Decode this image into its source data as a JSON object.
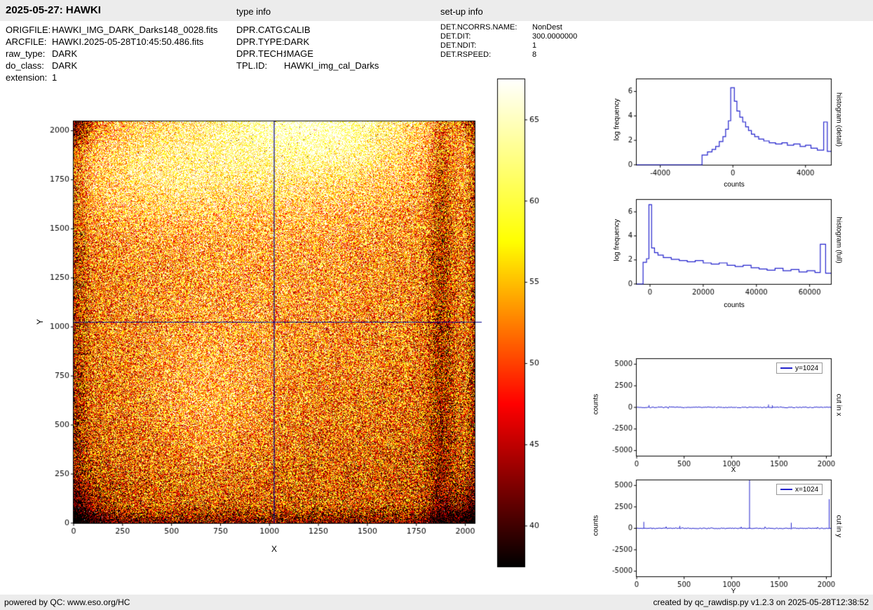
{
  "colors": {
    "line_blue": "#2222cc",
    "crosshair_blue": "#00008b",
    "bar_bg": "#ececec"
  },
  "header": {
    "title": "2025-05-27: HAWKI",
    "type_info": "type info",
    "setup_info": "set-up info"
  },
  "metadata": {
    "files": [
      {
        "label": "ORIGFILE:",
        "value": "HAWKI_IMG_DARK_Darks148_0028.fits"
      },
      {
        "label": "ARCFILE:",
        "value": "HAWKI.2025-05-28T10:45:50.486.fits"
      },
      {
        "label": "raw_type:",
        "value": "DARK"
      },
      {
        "label": "do_class:",
        "value": "DARK"
      },
      {
        "label": "extension:",
        "value": "1"
      }
    ],
    "type_info": [
      {
        "label": "DPR.CATG:",
        "value": "CALIB"
      },
      {
        "label": "DPR.TYPE:",
        "value": "DARK"
      },
      {
        "label": "DPR.TECH:",
        "value": "IMAGE"
      },
      {
        "label": "TPL.ID:",
        "value": "HAWKI_img_cal_Darks"
      }
    ],
    "setup_info": [
      {
        "label": "DET.NCORRS.NAME:",
        "value": "NonDest"
      },
      {
        "label": "DET.DIT:",
        "value": "300.0000000"
      },
      {
        "label": "DET.NDIT:",
        "value": "1"
      },
      {
        "label": "DET.RSPEED:",
        "value": "8"
      }
    ]
  },
  "footer": {
    "left": "powered by QC: www.eso.org/HC",
    "right": "created by qc_rawdisp.py v1.2.3 on 2025-05-28T12:38:52"
  },
  "chart_data": [
    {
      "id": "main_image",
      "type": "heatmap",
      "xlabel": "X",
      "ylabel": "Y",
      "xlim": [
        0,
        2048
      ],
      "ylim": [
        0,
        2048
      ],
      "xticks": [
        0,
        250,
        500,
        750,
        1000,
        1250,
        1500,
        1750,
        2000
      ],
      "yticks": [
        0,
        250,
        500,
        750,
        1000,
        1250,
        1500,
        1750,
        2000
      ],
      "crosshair": {
        "x": 1024,
        "y": 1024
      },
      "colormap": "hot",
      "appearance": "noisy dark frame, bright saturated region along top, dark borders and bottom corners, dark vertical band near x=1880",
      "colorbar": {
        "vmin": 37.5,
        "vmax": 67.5,
        "ticks": [
          40,
          45,
          50,
          55,
          60,
          65
        ]
      }
    },
    {
      "id": "hist_detail",
      "type": "line",
      "step": true,
      "xlabel": "counts",
      "ylabel": "log frequency",
      "right_label": "histogram (detail)",
      "xlim": [
        -5300,
        5400
      ],
      "ylim": [
        0,
        7
      ],
      "xticks": [
        -4000,
        0,
        4000
      ],
      "yticks": [
        0,
        2,
        4,
        6
      ],
      "points": [
        [
          -5300,
          0
        ],
        [
          -1700,
          0
        ],
        [
          -1700,
          0.8
        ],
        [
          -1400,
          0.8
        ],
        [
          -1400,
          1.05
        ],
        [
          -1150,
          1.05
        ],
        [
          -1150,
          1.25
        ],
        [
          -950,
          1.25
        ],
        [
          -950,
          1.5
        ],
        [
          -750,
          1.5
        ],
        [
          -750,
          1.9
        ],
        [
          -550,
          1.9
        ],
        [
          -550,
          2.3
        ],
        [
          -400,
          2.3
        ],
        [
          -400,
          2.9
        ],
        [
          -250,
          2.9
        ],
        [
          -250,
          3.6
        ],
        [
          -120,
          3.6
        ],
        [
          -120,
          6.3
        ],
        [
          80,
          6.3
        ],
        [
          80,
          5.2
        ],
        [
          220,
          5.2
        ],
        [
          220,
          4.4
        ],
        [
          380,
          4.4
        ],
        [
          380,
          3.9
        ],
        [
          540,
          3.9
        ],
        [
          540,
          3.5
        ],
        [
          700,
          3.5
        ],
        [
          700,
          3.1
        ],
        [
          860,
          3.1
        ],
        [
          860,
          2.8
        ],
        [
          1020,
          2.8
        ],
        [
          1020,
          2.5
        ],
        [
          1200,
          2.5
        ],
        [
          1200,
          2.3
        ],
        [
          1420,
          2.3
        ],
        [
          1420,
          2.1
        ],
        [
          1700,
          2.1
        ],
        [
          1700,
          1.95
        ],
        [
          2000,
          1.95
        ],
        [
          2000,
          1.8
        ],
        [
          2350,
          1.8
        ],
        [
          2350,
          1.7
        ],
        [
          2700,
          1.7
        ],
        [
          2700,
          1.8
        ],
        [
          3000,
          1.8
        ],
        [
          3000,
          1.6
        ],
        [
          3350,
          1.6
        ],
        [
          3350,
          1.7
        ],
        [
          3700,
          1.7
        ],
        [
          3700,
          1.5
        ],
        [
          4000,
          1.5
        ],
        [
          4000,
          1.6
        ],
        [
          4300,
          1.6
        ],
        [
          4300,
          1.35
        ],
        [
          4650,
          1.35
        ],
        [
          4650,
          1.2
        ],
        [
          5000,
          1.2
        ],
        [
          5000,
          3.5
        ],
        [
          5200,
          3.5
        ],
        [
          5200,
          1.1
        ],
        [
          5400,
          1.1
        ]
      ]
    },
    {
      "id": "hist_full",
      "type": "line",
      "step": true,
      "xlabel": "counts",
      "ylabel": "log frequency",
      "right_label": "histogram (full)",
      "xlim": [
        -5000,
        68000
      ],
      "ylim": [
        0,
        7
      ],
      "xticks": [
        0,
        20000,
        40000,
        60000
      ],
      "yticks": [
        0,
        2,
        4,
        6
      ],
      "points": [
        [
          -5000,
          0
        ],
        [
          -2600,
          0
        ],
        [
          -2600,
          1.8
        ],
        [
          -1300,
          1.8
        ],
        [
          -1300,
          2.1
        ],
        [
          -400,
          2.1
        ],
        [
          -400,
          6.6
        ],
        [
          600,
          6.6
        ],
        [
          600,
          3.0
        ],
        [
          1700,
          3.0
        ],
        [
          1700,
          2.6
        ],
        [
          3000,
          2.6
        ],
        [
          3000,
          2.4
        ],
        [
          5000,
          2.4
        ],
        [
          5000,
          2.2
        ],
        [
          8000,
          2.2
        ],
        [
          8000,
          2.05
        ],
        [
          11000,
          2.05
        ],
        [
          11000,
          1.95
        ],
        [
          14000,
          1.95
        ],
        [
          14000,
          1.85
        ],
        [
          17000,
          1.85
        ],
        [
          17000,
          1.95
        ],
        [
          20000,
          1.95
        ],
        [
          20000,
          1.75
        ],
        [
          23000,
          1.75
        ],
        [
          23000,
          1.65
        ],
        [
          26000,
          1.65
        ],
        [
          26000,
          1.75
        ],
        [
          29000,
          1.75
        ],
        [
          29000,
          1.55
        ],
        [
          32000,
          1.55
        ],
        [
          32000,
          1.45
        ],
        [
          35000,
          1.45
        ],
        [
          35000,
          1.55
        ],
        [
          38000,
          1.55
        ],
        [
          38000,
          1.35
        ],
        [
          41000,
          1.35
        ],
        [
          41000,
          1.25
        ],
        [
          44000,
          1.25
        ],
        [
          44000,
          1.15
        ],
        [
          47000,
          1.15
        ],
        [
          47000,
          1.3
        ],
        [
          50000,
          1.3
        ],
        [
          50000,
          1.1
        ],
        [
          53000,
          1.1
        ],
        [
          53000,
          1.2
        ],
        [
          56000,
          1.2
        ],
        [
          56000,
          1.0
        ],
        [
          59000,
          1.0
        ],
        [
          59000,
          1.1
        ],
        [
          62000,
          1.1
        ],
        [
          62000,
          0.95
        ],
        [
          64000,
          0.95
        ],
        [
          64000,
          3.3
        ],
        [
          66000,
          3.3
        ],
        [
          66000,
          0.9
        ],
        [
          68000,
          0.9
        ]
      ]
    },
    {
      "id": "cut_x",
      "type": "line",
      "legend": "y=1024",
      "xlabel": "X",
      "ylabel": "counts",
      "right_label": "cut in x",
      "xlim": [
        0,
        2048
      ],
      "ylim": [
        -5600,
        5600
      ],
      "xticks": [
        0,
        500,
        1000,
        1500,
        2000
      ],
      "yticks": [
        -5000,
        -2500,
        0,
        2500,
        5000
      ],
      "baseline": 0,
      "noise_amp": 55,
      "spikes": [
        {
          "x": 130,
          "v": 260
        },
        {
          "x": 1390,
          "v": 330
        },
        {
          "x": 1430,
          "v": 240
        }
      ]
    },
    {
      "id": "cut_y",
      "type": "line",
      "legend": "x=1024",
      "xlabel": "Y",
      "ylabel": "counts",
      "right_label": "cut in y",
      "xlim": [
        0,
        2048
      ],
      "ylim": [
        -5600,
        5600
      ],
      "xticks": [
        0,
        500,
        1000,
        1500,
        2000
      ],
      "yticks": [
        -5000,
        -2500,
        0,
        2500,
        5000
      ],
      "baseline": 0,
      "noise_amp": 55,
      "spikes": [
        {
          "x": 75,
          "v": 750
        },
        {
          "x": 455,
          "v": 280
        },
        {
          "x": 1190,
          "v": 5600
        },
        {
          "x": 1630,
          "v": 650
        },
        {
          "x": 2030,
          "v": 3400
        }
      ]
    }
  ]
}
